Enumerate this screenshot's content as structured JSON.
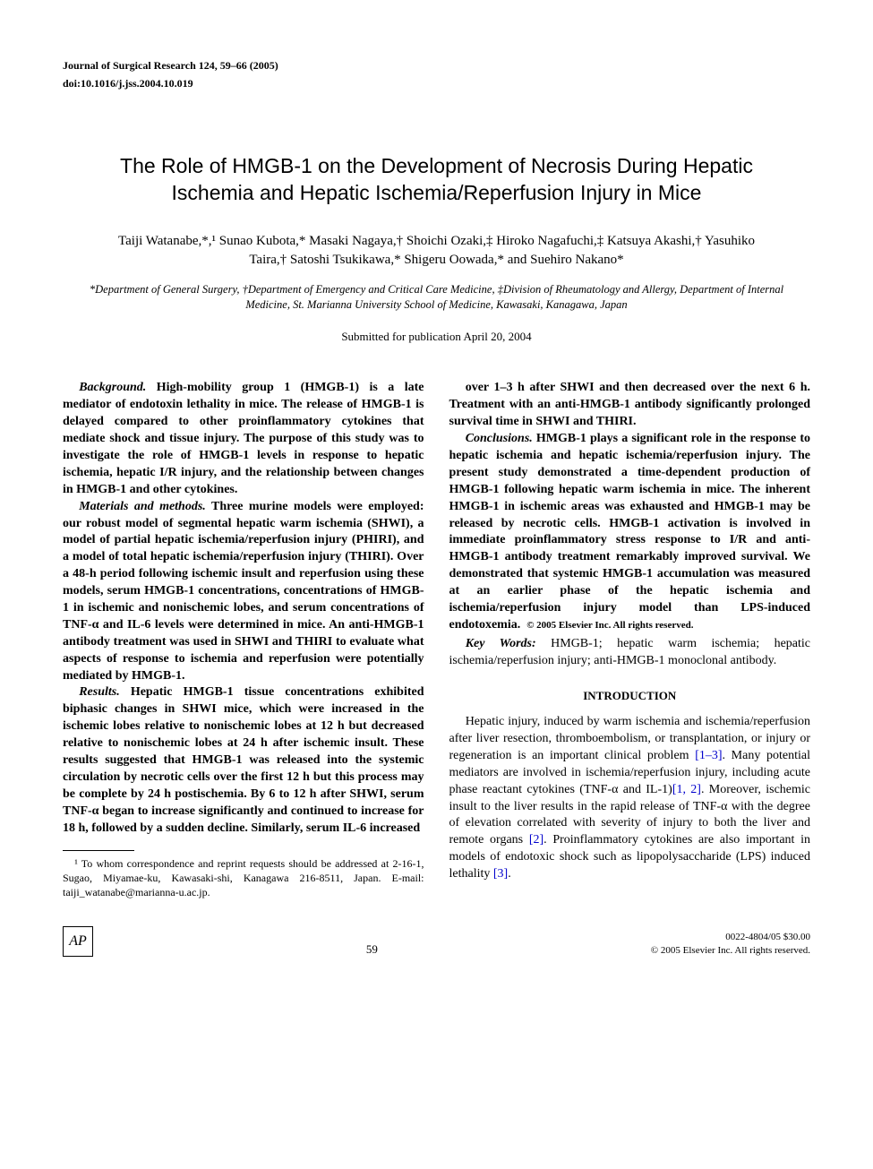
{
  "header": {
    "journal": "Journal of Surgical Research 124, 59–66 (2005)",
    "doi": "doi:10.1016/j.jss.2004.10.019"
  },
  "title": "The Role of HMGB-1 on the Development of Necrosis During Hepatic Ischemia and Hepatic Ischemia/Reperfusion Injury in Mice",
  "authors": "Taiji Watanabe,*,¹ Sunao Kubota,* Masaki Nagaya,† Shoichi Ozaki,‡ Hiroko Nagafuchi,‡ Katsuya Akashi,† Yasuhiko Taira,† Satoshi Tsukikawa,* Shigeru Oowada,* and Suehiro Nakano*",
  "affiliations": "*Department of General Surgery, †Department of Emergency and Critical Care Medicine, ‡Division of Rheumatology and Allergy, Department of Internal Medicine, St. Marianna University School of Medicine, Kawasaki, Kanagawa, Japan",
  "submitted": "Submitted for publication April 20, 2004",
  "abstract": {
    "background_label": "Background.",
    "background": " High-mobility group 1 (HMGB-1) is a late mediator of endotoxin lethality in mice. The release of HMGB-1 is delayed compared to other proinflammatory cytokines that mediate shock and tissue injury. The purpose of this study was to investigate the role of HMGB-1 levels in response to hepatic ischemia, hepatic I/R injury, and the relationship between changes in HMGB-1 and other cytokines.",
    "materials_label": "Materials and methods.",
    "materials": " Three murine models were employed: our robust model of segmental hepatic warm ischemia (SHWI), a model of partial hepatic ischemia/reperfusion injury (PHIRI), and a model of total hepatic ischemia/reperfusion injury (THIRI). Over a 48-h period following ischemic insult and reperfusion using these models, serum HMGB-1 concentrations, concentrations of HMGB-1 in ischemic and nonischemic lobes, and serum concentrations of TNF-α and IL-6 levels were determined in mice. An anti-HMGB-1 antibody treatment was used in SHWI and THIRI to evaluate what aspects of response to ischemia and reperfusion were potentially mediated by HMGB-1.",
    "results_label": "Results.",
    "results": " Hepatic HMGB-1 tissue concentrations exhibited biphasic changes in SHWI mice, which were increased in the ischemic lobes relative to nonischemic lobes at 12 h but decreased relative to nonischemic lobes at 24 h after ischemic insult. These results suggested that HMGB-1 was released into the systemic circulation by necrotic cells over the first 12 h but this process may be complete by 24 h postischemia. By 6 to 12 h after SHWI, serum TNF-α began to increase significantly and continued to increase for 18 h, followed by a sudden decline. Similarly, serum IL-6 increased",
    "results_cont": "over 1–3 h after SHWI and then decreased over the next 6 h. Treatment with an anti-HMGB-1 antibody significantly prolonged survival time in SHWI and THIRI.",
    "conclusions_label": "Conclusions.",
    "conclusions": " HMGB-1 plays a significant role in the response to hepatic ischemia and hepatic ischemia/reperfusion injury. The present study demonstrated a time-dependent production of HMGB-1 following hepatic warm ischemia in mice. The inherent HMGB-1 in ischemic areas was exhausted and HMGB-1 may be released by necrotic cells. HMGB-1 activation is involved in immediate proinflammatory stress response to I/R and anti-HMGB-1 antibody treatment remarkably improved survival. We demonstrated that systemic HMGB-1 accumulation was measured at an earlier phase of the hepatic ischemia and ischemia/reperfusion injury model than LPS-induced endotoxemia.",
    "copyright": "© 2005 Elsevier Inc. All rights reserved.",
    "keywords_label": "Key Words:",
    "keywords": " HMGB-1; hepatic warm ischemia; hepatic ischemia/reperfusion injury; anti-HMGB-1 monoclonal antibody."
  },
  "intro": {
    "heading": "INTRODUCTION",
    "para1_a": "Hepatic injury, induced by warm ischemia and ischemia/reperfusion after liver resection, thromboembolism, or transplantation, or injury or regeneration is an important clinical problem ",
    "ref1": "[1–3]",
    "para1_b": ". Many potential mediators are involved in ischemia/reperfusion injury, including acute phase reactant cytokines (TNF-α and IL-1)",
    "ref2": "[1, 2]",
    "para1_c": ". Moreover, ischemic insult to the liver results in the rapid release of TNF-α with the degree of elevation correlated with severity of injury to both the liver and remote organs ",
    "ref3": "[2]",
    "para1_d": ". Proinflammatory cytokines are also important in models of endotoxic shock such as lipopolysaccharide (LPS) induced lethality ",
    "ref4": "[3]",
    "para1_e": "."
  },
  "footnote": "¹ To whom correspondence and reprint requests should be addressed at 2-16-1, Sugao, Miyamae-ku, Kawasaki-shi, Kanagawa 216-8511, Japan. E-mail: taiji_watanabe@marianna-u.ac.jp.",
  "footer": {
    "page": "59",
    "issn": "0022-4804/05 $30.00",
    "copyright": "© 2005 Elsevier Inc. All rights reserved."
  }
}
